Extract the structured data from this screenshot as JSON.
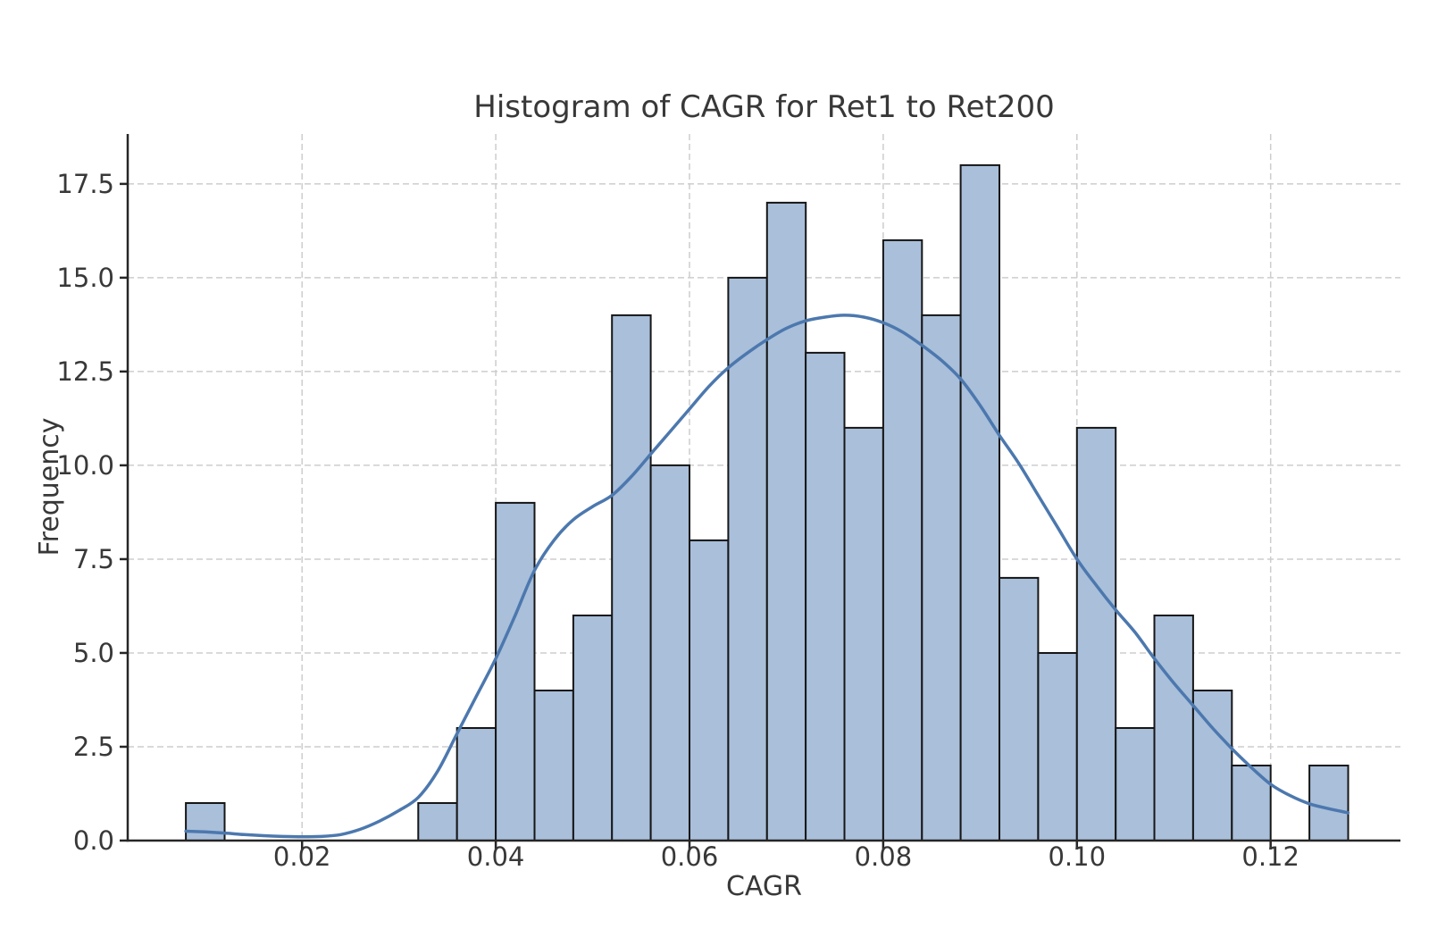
{
  "chart_data": {
    "type": "bar",
    "subtype": "histogram_with_kde",
    "title": "Histogram of CAGR for Ret1 to Ret200",
    "xlabel": "CAGR",
    "ylabel": "Frequency",
    "bin_start": 0.008,
    "bin_width": 0.004,
    "counts": [
      1,
      0,
      0,
      0,
      0,
      0,
      1,
      3,
      9,
      4,
      6,
      14,
      10,
      8,
      15,
      17,
      13,
      11,
      16,
      14,
      18,
      7,
      5,
      11,
      3,
      6,
      4,
      2,
      0,
      2
    ],
    "total_count": 200,
    "kde_points": [
      [
        0.008,
        0.25
      ],
      [
        0.01,
        0.23
      ],
      [
        0.012,
        0.2
      ],
      [
        0.014,
        0.16
      ],
      [
        0.016,
        0.13
      ],
      [
        0.018,
        0.11
      ],
      [
        0.02,
        0.1
      ],
      [
        0.022,
        0.11
      ],
      [
        0.024,
        0.16
      ],
      [
        0.026,
        0.3
      ],
      [
        0.028,
        0.52
      ],
      [
        0.03,
        0.8
      ],
      [
        0.032,
        1.15
      ],
      [
        0.034,
        1.85
      ],
      [
        0.036,
        2.85
      ],
      [
        0.038,
        3.85
      ],
      [
        0.04,
        4.85
      ],
      [
        0.042,
        6.0
      ],
      [
        0.044,
        7.2
      ],
      [
        0.046,
        8.0
      ],
      [
        0.048,
        8.55
      ],
      [
        0.05,
        8.9
      ],
      [
        0.052,
        9.2
      ],
      [
        0.054,
        9.7
      ],
      [
        0.056,
        10.3
      ],
      [
        0.058,
        10.9
      ],
      [
        0.06,
        11.5
      ],
      [
        0.062,
        12.1
      ],
      [
        0.064,
        12.6
      ],
      [
        0.066,
        13.0
      ],
      [
        0.068,
        13.35
      ],
      [
        0.07,
        13.65
      ],
      [
        0.072,
        13.85
      ],
      [
        0.074,
        13.95
      ],
      [
        0.076,
        14.0
      ],
      [
        0.078,
        13.95
      ],
      [
        0.08,
        13.8
      ],
      [
        0.082,
        13.55
      ],
      [
        0.084,
        13.2
      ],
      [
        0.086,
        12.8
      ],
      [
        0.088,
        12.3
      ],
      [
        0.09,
        11.6
      ],
      [
        0.092,
        10.8
      ],
      [
        0.094,
        10.05
      ],
      [
        0.096,
        9.2
      ],
      [
        0.098,
        8.35
      ],
      [
        0.1,
        7.5
      ],
      [
        0.102,
        6.8
      ],
      [
        0.104,
        6.15
      ],
      [
        0.106,
        5.55
      ],
      [
        0.108,
        4.85
      ],
      [
        0.11,
        4.2
      ],
      [
        0.112,
        3.6
      ],
      [
        0.114,
        3.0
      ],
      [
        0.116,
        2.45
      ],
      [
        0.118,
        1.95
      ],
      [
        0.12,
        1.5
      ],
      [
        0.122,
        1.2
      ],
      [
        0.124,
        0.98
      ],
      [
        0.126,
        0.85
      ],
      [
        0.128,
        0.74
      ]
    ],
    "xticks": [
      0.02,
      0.04,
      0.06,
      0.08,
      0.1,
      0.12
    ],
    "xtick_labels": [
      "0.02",
      "0.04",
      "0.06",
      "0.08",
      "0.10",
      "0.12"
    ],
    "yticks": [
      0.0,
      2.5,
      5.0,
      7.5,
      10.0,
      12.5,
      15.0,
      17.5
    ],
    "ytick_labels": [
      "0.0",
      "2.5",
      "5.0",
      "7.5",
      "10.0",
      "12.5",
      "15.0",
      "17.5"
    ],
    "xlim": [
      0.002,
      0.1334
    ],
    "ylim": [
      0,
      18.83
    ],
    "grid": true,
    "legend_position": "none",
    "colors": {
      "bar_fill": "#a9bfda",
      "bar_edge": "#161616",
      "kde_line": "#4c78ae",
      "grid_line": "#cdcdcd",
      "spine": "#262626",
      "tick_mark": "#262626",
      "text": "#383838",
      "background": "#ffffff"
    }
  }
}
